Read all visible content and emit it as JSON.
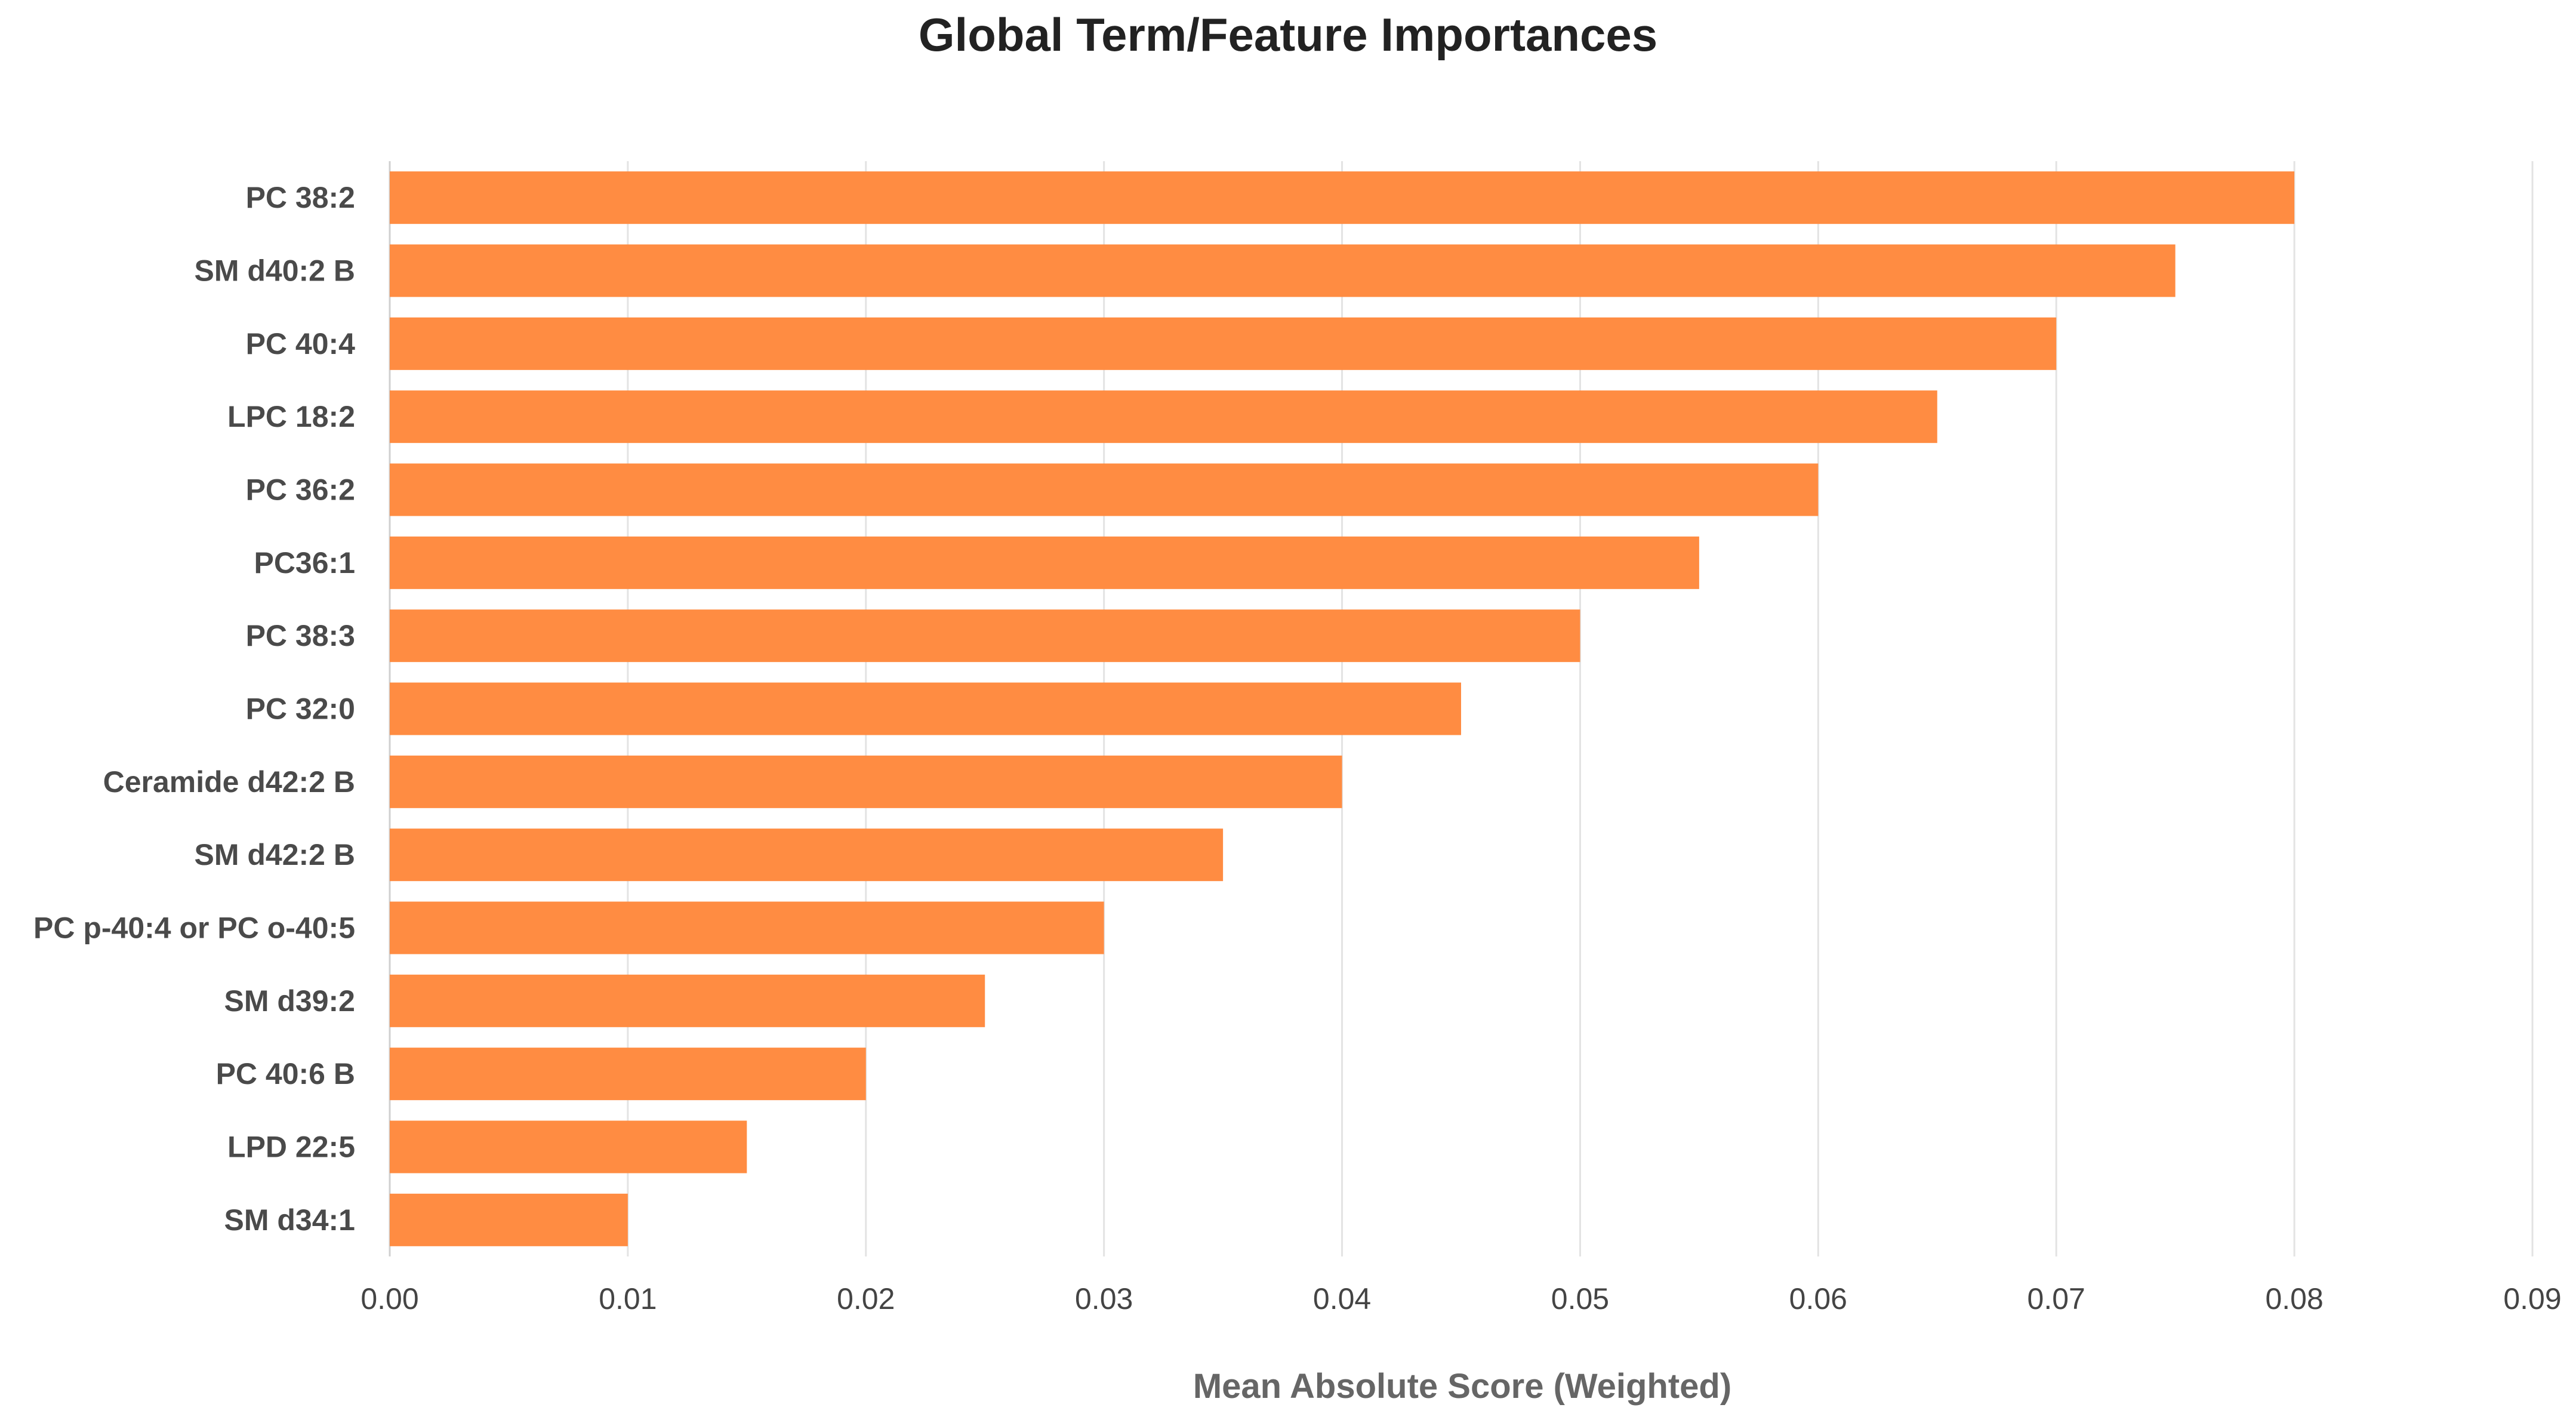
{
  "chart_data": {
    "type": "bar",
    "orientation": "horizontal",
    "title": "Global Term/Feature Importances",
    "xlabel": "Mean Absolute Score (Weighted)",
    "ylabel": "",
    "categories": [
      "PC 38:2",
      "SM d40:2 B",
      "PC 40:4",
      "LPC 18:2",
      "PC 36:2",
      "PC36:1",
      "PC 38:3",
      "PC 32:0",
      "Ceramide d42:2 B",
      "SM d42:2 B",
      "PC p-40:4 or PC o-40:5",
      "SM d39:2",
      "PC 40:6 B",
      "LPD 22:5",
      "SM d34:1"
    ],
    "values": [
      0.08,
      0.075,
      0.07,
      0.065,
      0.06,
      0.055,
      0.05,
      0.045,
      0.04,
      0.035,
      0.03,
      0.025,
      0.02,
      0.015,
      0.01
    ],
    "xlim": [
      0,
      0.09
    ],
    "x_ticks": [
      "0.00",
      "0.01",
      "0.02",
      "0.03",
      "0.04",
      "0.05",
      "0.06",
      "0.07",
      "0.08",
      "0.09"
    ],
    "bar_color": "#ff8c42",
    "grid": true,
    "legend": "none"
  }
}
